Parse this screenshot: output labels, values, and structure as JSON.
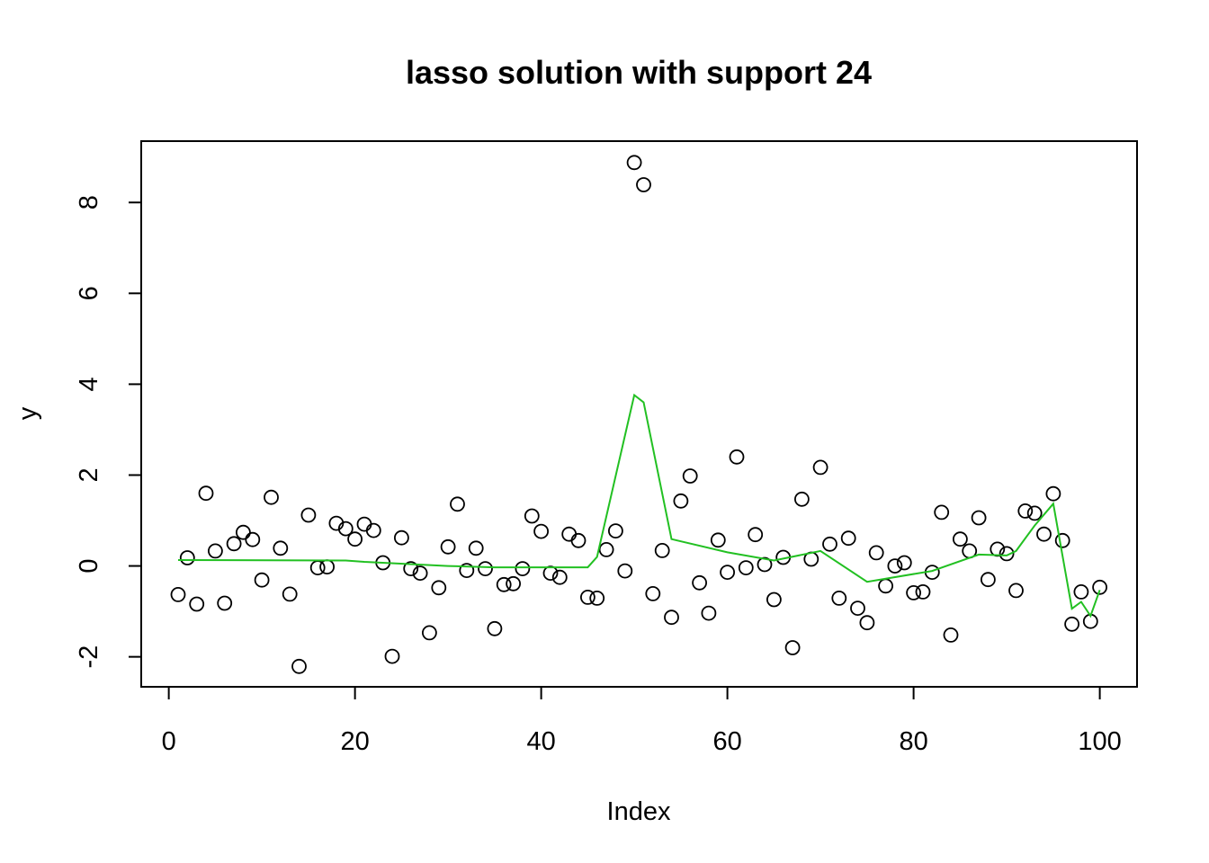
{
  "chart_data": {
    "type": "scatter",
    "title": "lasso solution with support 24",
    "xlabel": "Index",
    "ylabel": "y",
    "xlim": [
      -2.96,
      104
    ],
    "ylim": [
      -2.66,
      9.35
    ],
    "xticks": [
      0,
      20,
      40,
      60,
      80,
      100
    ],
    "yticks": [
      -2,
      0,
      2,
      4,
      6,
      8
    ],
    "xtick_labels": [
      "0",
      "20",
      "40",
      "60",
      "80",
      "100"
    ],
    "ytick_labels": [
      "-2",
      "0",
      "2",
      "4",
      "6",
      "8"
    ],
    "grid": false,
    "legend": "none",
    "series": [
      {
        "type": "scatter",
        "marker": "open-circle",
        "color": "#000000",
        "x": [
          1,
          2,
          3,
          4,
          5,
          6,
          7,
          8,
          9,
          10,
          11,
          12,
          13,
          14,
          15,
          16,
          17,
          18,
          19,
          20,
          21,
          22,
          23,
          24,
          25,
          26,
          27,
          28,
          29,
          30,
          31,
          32,
          33,
          34,
          35,
          36,
          37,
          38,
          39,
          40,
          41,
          42,
          43,
          44,
          45,
          46,
          47,
          48,
          49,
          50,
          51,
          52,
          53,
          54,
          55,
          56,
          57,
          58,
          59,
          60,
          61,
          62,
          63,
          64,
          65,
          66,
          67,
          68,
          69,
          70,
          71,
          72,
          73,
          74,
          75,
          76,
          77,
          78,
          79,
          80,
          81,
          82,
          83,
          84,
          85,
          86,
          87,
          88,
          89,
          90,
          91,
          92,
          93,
          94,
          95,
          96,
          97,
          98,
          99,
          100
        ],
        "y": [
          -0.63,
          0.18,
          -0.84,
          1.6,
          0.33,
          -0.82,
          0.49,
          0.74,
          0.58,
          -0.31,
          1.51,
          0.39,
          -0.62,
          -2.21,
          1.12,
          -0.04,
          -0.02,
          0.94,
          0.82,
          0.59,
          0.92,
          0.78,
          0.07,
          -1.99,
          0.62,
          -0.06,
          -0.16,
          -1.47,
          -0.48,
          0.42,
          1.36,
          -0.1,
          0.39,
          -0.06,
          -1.38,
          -0.41,
          -0.39,
          -0.06,
          1.1,
          0.76,
          -0.16,
          -0.25,
          0.7,
          0.56,
          -0.69,
          -0.71,
          0.36,
          0.77,
          -0.11,
          8.88,
          8.39,
          -0.61,
          0.34,
          -1.13,
          1.43,
          1.98,
          -0.37,
          -1.04,
          0.57,
          -0.14,
          2.4,
          -0.04,
          0.69,
          0.03,
          -0.74,
          0.19,
          -1.8,
          1.47,
          0.15,
          2.17,
          0.48,
          -0.71,
          0.61,
          -0.93,
          -1.25,
          0.29,
          -0.44,
          0.0,
          0.07,
          -0.59,
          -0.57,
          -0.14,
          1.18,
          -1.52,
          0.59,
          0.33,
          1.06,
          -0.3,
          0.37,
          0.27,
          -0.54,
          1.21,
          1.16,
          0.7,
          1.59,
          0.56,
          -1.28,
          -0.57,
          -1.22,
          -0.47
        ]
      },
      {
        "type": "line",
        "color": "#22c022",
        "x": [
          1,
          19,
          21,
          30,
          35,
          40,
          45,
          46,
          50,
          51,
          54,
          60,
          65,
          70,
          75,
          82,
          87,
          90,
          91,
          93,
          95,
          97,
          98,
          99,
          100
        ],
        "y": [
          0.13,
          0.12,
          0.09,
          0.0,
          -0.03,
          -0.03,
          -0.03,
          0.2,
          3.76,
          3.6,
          0.59,
          0.3,
          0.12,
          0.33,
          -0.35,
          -0.11,
          0.25,
          0.23,
          0.33,
          0.89,
          1.37,
          -0.94,
          -0.79,
          -1.1,
          -0.53
        ]
      }
    ]
  }
}
